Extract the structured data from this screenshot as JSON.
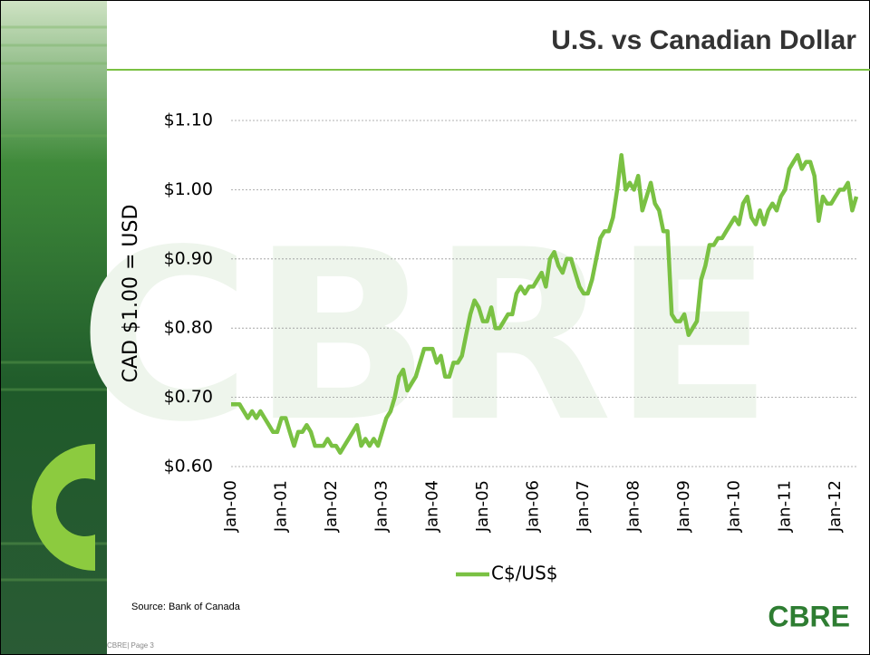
{
  "header": {
    "title": "U.S. vs Canadian Dollar"
  },
  "watermark": "CBRE",
  "chart_data": {
    "type": "line",
    "ylabel": "CAD $1.00 = USD",
    "categories": [
      "Jan-00",
      null,
      null,
      null,
      null,
      null,
      null,
      null,
      null,
      null,
      null,
      null,
      "Jan-01",
      null,
      null,
      null,
      null,
      null,
      null,
      null,
      null,
      null,
      null,
      null,
      "Jan-02",
      null,
      null,
      null,
      null,
      null,
      null,
      null,
      null,
      null,
      null,
      null,
      "Jan-03",
      null,
      null,
      null,
      null,
      null,
      null,
      null,
      null,
      null,
      null,
      null,
      "Jan-04",
      null,
      null,
      null,
      null,
      null,
      null,
      null,
      null,
      null,
      null,
      null,
      "Jan-05",
      null,
      null,
      null,
      null,
      null,
      null,
      null,
      null,
      null,
      null,
      null,
      "Jan-06",
      null,
      null,
      null,
      null,
      null,
      null,
      null,
      null,
      null,
      null,
      null,
      "Jan-07",
      null,
      null,
      null,
      null,
      null,
      null,
      null,
      null,
      null,
      null,
      null,
      "Jan-08",
      null,
      null,
      null,
      null,
      null,
      null,
      null,
      null,
      null,
      null,
      null,
      "Jan-09",
      null,
      null,
      null,
      null,
      null,
      null,
      null,
      null,
      null,
      null,
      null,
      "Jan-10",
      null,
      null,
      null,
      null,
      null,
      null,
      null,
      null,
      null,
      null,
      null,
      "Jan-11",
      null,
      null,
      null,
      null,
      null,
      null,
      null,
      null,
      null,
      null,
      null,
      "Jan-12",
      null,
      null,
      null,
      null,
      null
    ],
    "series": [
      {
        "name": "C$/US$",
        "color": "#7ac143",
        "values": [
          0.69,
          0.69,
          0.69,
          0.68,
          0.67,
          0.68,
          0.67,
          0.68,
          0.67,
          0.66,
          0.65,
          0.65,
          0.67,
          0.67,
          0.65,
          0.63,
          0.65,
          0.65,
          0.66,
          0.65,
          0.63,
          0.63,
          0.63,
          0.64,
          0.63,
          0.63,
          0.62,
          0.63,
          0.64,
          0.65,
          0.66,
          0.63,
          0.64,
          0.63,
          0.64,
          0.63,
          0.65,
          0.67,
          0.68,
          0.7,
          0.73,
          0.74,
          0.71,
          0.72,
          0.73,
          0.75,
          0.77,
          0.77,
          0.77,
          0.75,
          0.76,
          0.73,
          0.73,
          0.75,
          0.75,
          0.76,
          0.79,
          0.82,
          0.84,
          0.83,
          0.81,
          0.81,
          0.83,
          0.8,
          0.8,
          0.81,
          0.82,
          0.82,
          0.85,
          0.86,
          0.85,
          0.86,
          0.86,
          0.87,
          0.88,
          0.86,
          0.9,
          0.91,
          0.89,
          0.88,
          0.9,
          0.9,
          0.88,
          0.86,
          0.85,
          0.85,
          0.87,
          0.9,
          0.93,
          0.94,
          0.94,
          0.96,
          1.0,
          1.05,
          1.0,
          1.01,
          1.0,
          1.02,
          0.97,
          0.99,
          1.01,
          0.98,
          0.97,
          0.94,
          0.94,
          0.82,
          0.81,
          0.81,
          0.82,
          0.79,
          0.8,
          0.81,
          0.87,
          0.89,
          0.92,
          0.92,
          0.93,
          0.93,
          0.94,
          0.95,
          0.96,
          0.95,
          0.98,
          0.99,
          0.96,
          0.95,
          0.97,
          0.95,
          0.97,
          0.98,
          0.97,
          0.99,
          1.0,
          1.03,
          1.04,
          1.05,
          1.03,
          1.04,
          1.04,
          1.02,
          0.955,
          0.99,
          0.98,
          0.98,
          0.99,
          1.0,
          1.0,
          1.01,
          0.97,
          0.99
        ]
      }
    ],
    "ylim": [
      0.6,
      1.1
    ],
    "yticks": [
      {
        "value": 0.6,
        "label": "$0.60"
      },
      {
        "value": 0.7,
        "label": "$0.70"
      },
      {
        "value": 0.8,
        "label": "$0.80"
      },
      {
        "value": 0.9,
        "label": "$0.90"
      },
      {
        "value": 1.0,
        "label": "$1.00"
      },
      {
        "value": 1.1,
        "label": "$1.10"
      }
    ],
    "grid": true,
    "legend": "bottom"
  },
  "footer": {
    "source": "Source: Bank of Canada",
    "logo": "CBRE",
    "page": "CBRE| Page 3"
  }
}
